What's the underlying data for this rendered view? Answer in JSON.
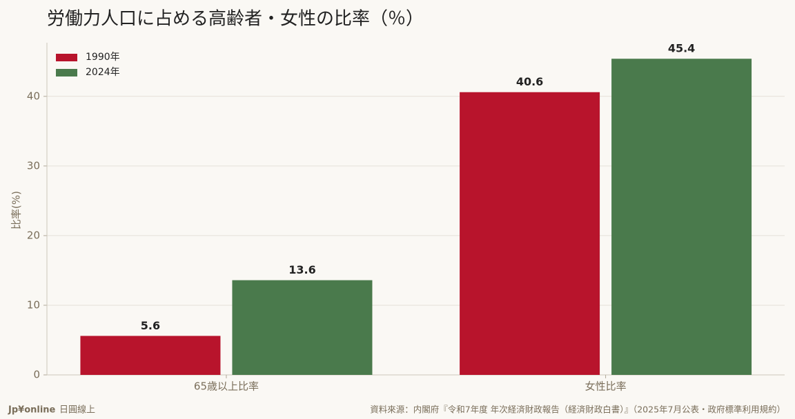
{
  "chart_data": {
    "type": "bar",
    "title": "労働力人口に占める高齢者・女性の比率（％）",
    "y_label": "比率(%)",
    "categories": [
      "65歳以上比率",
      "女性比率"
    ],
    "series": [
      {
        "name": "1990年",
        "color": "#b8142c",
        "values": [
          5.6,
          40.6
        ]
      },
      {
        "name": "2024年",
        "color": "#4a7a4c",
        "values": [
          13.6,
          45.4
        ]
      }
    ],
    "ylim": [
      0,
      47.7
    ],
    "yticks": [
      0,
      10,
      20,
      30,
      40
    ],
    "grid": true,
    "legend": "upper left"
  },
  "footer": {
    "brand": "Jp¥online",
    "brand_sub": "日圓線上",
    "source": "資料來源：内閣府『令和7年度 年次経済財政報告（経済財政白書）』（2025年7月公表・政府標準利用規約）"
  }
}
